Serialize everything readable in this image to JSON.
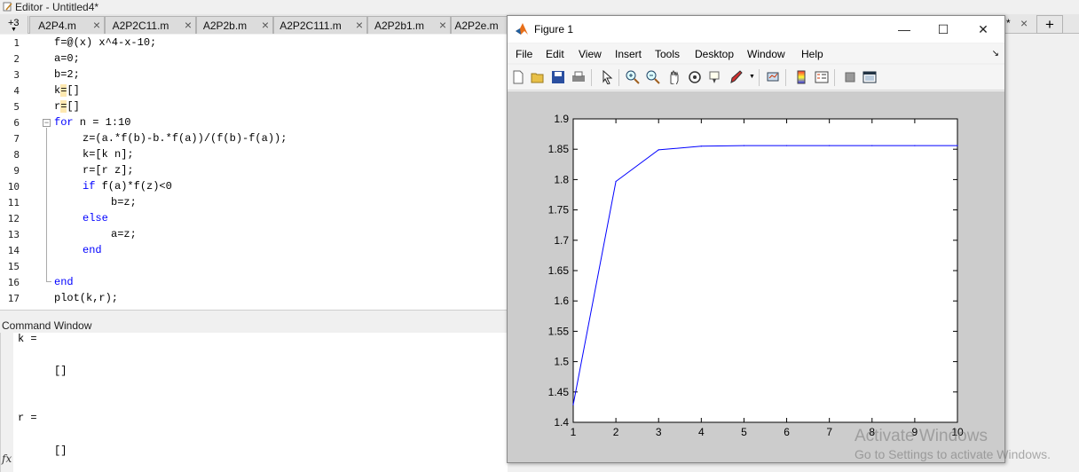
{
  "editor": {
    "title": "Editor - Untitled4*",
    "tab_overflow": "+3",
    "tabs": [
      {
        "label": "A2P4.m"
      },
      {
        "label": "A2P2C11.m"
      },
      {
        "label": "A2P2b.m"
      },
      {
        "label": "A2P2C111.m"
      },
      {
        "label": "A2P2b1.m"
      },
      {
        "label": "A2P2e.m"
      }
    ],
    "hidden_tab_star": "*",
    "add_tab": "+",
    "close_glyph": "×",
    "line_numbers": [
      "1",
      "2",
      "3",
      "4",
      "5",
      "6",
      "7",
      "8",
      "9",
      "10",
      "11",
      "12",
      "13",
      "14",
      "15",
      "16",
      "17"
    ],
    "code": {
      "l1": "f=@(x) x^4-x-10;",
      "l2": "a=0;",
      "l3": "b=2;",
      "l4a": "k",
      "l4b": "=",
      "l4c": "[]",
      "l5a": "r",
      "l5b": "=",
      "l5c": "[]",
      "l6kw": "for",
      "l6": " n = 1:10",
      "l7": "z=(a.*f(b)-b.*f(a))/(f(b)-f(a));",
      "l8": "k=[k n];",
      "l9": "r=[r z];",
      "l10kw": "if",
      "l10": " f(a)*f(z)<0",
      "l11": "b=z;",
      "l12kw": "else",
      "l13": "a=z;",
      "l14kw": "end",
      "l16kw": "end",
      "l17": "plot(k,r);"
    }
  },
  "command_window": {
    "title": "Command Window",
    "lines": [
      "k =",
      "[]",
      "r =",
      "[]"
    ],
    "fx": "fx"
  },
  "figure": {
    "title": "Figure 1",
    "minimize": "—",
    "maximize": "☐",
    "close": "✕",
    "menus": [
      "File",
      "Edit",
      "View",
      "Insert",
      "Tools",
      "Desktop",
      "Window",
      "Help"
    ],
    "dock_arrow": "↘",
    "toolbar_icons": [
      "new-figure-icon",
      "open-file-icon",
      "save-icon",
      "print-icon",
      "pointer-icon",
      "zoom-in-icon",
      "zoom-out-icon",
      "pan-icon",
      "rotate-3d-icon",
      "data-cursor-icon",
      "brush-icon",
      "link-plot-icon",
      "colorbar-icon",
      "legend-icon",
      "hide-plot-tools-icon",
      "show-plot-tools-icon"
    ]
  },
  "chart_data": {
    "type": "line",
    "title": "",
    "xlabel": "",
    "ylabel": "",
    "xlim": [
      1,
      10
    ],
    "ylim": [
      1.4,
      1.9
    ],
    "xticks": [
      "1",
      "2",
      "3",
      "4",
      "5",
      "6",
      "7",
      "8",
      "9",
      "10"
    ],
    "yticks": [
      "1.4",
      "1.45",
      "1.5",
      "1.55",
      "1.6",
      "1.65",
      "1.7",
      "1.75",
      "1.8",
      "1.85",
      "1.9"
    ],
    "grid": false,
    "series": [
      {
        "color": "#0000ff",
        "x": [
          1,
          2,
          3,
          4,
          5,
          6,
          7,
          8,
          9,
          10
        ],
        "y": [
          1.429,
          1.797,
          1.849,
          1.855,
          1.856,
          1.856,
          1.856,
          1.856,
          1.856,
          1.856
        ]
      }
    ]
  },
  "watermark": {
    "line1": "Activate Windows",
    "line2": "Go to Settings to activate Windows."
  }
}
